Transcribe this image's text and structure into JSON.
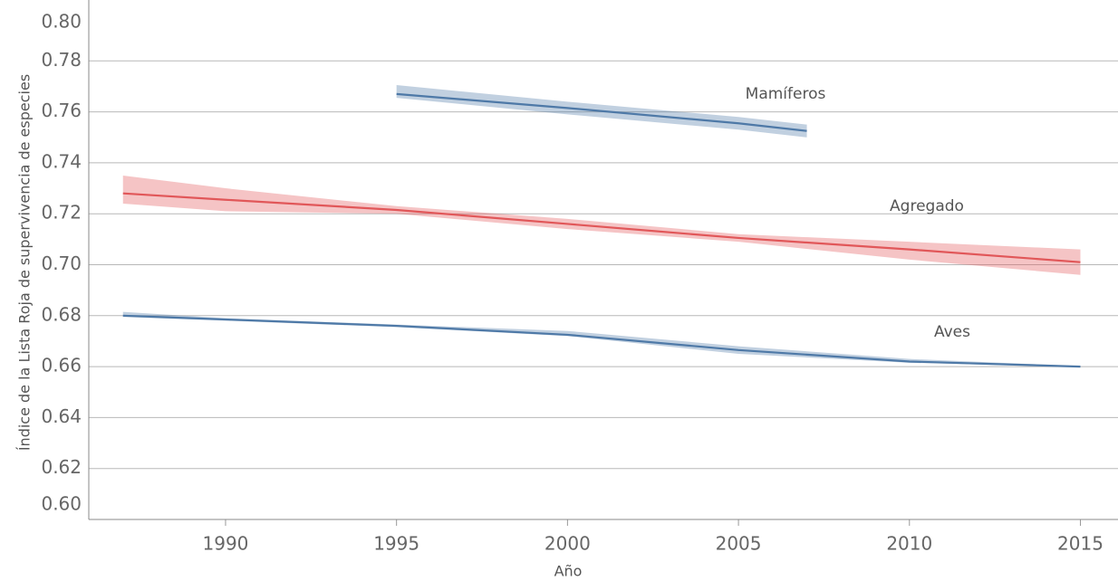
{
  "chart_data": {
    "type": "line",
    "x_label": "Año",
    "y_label": "Índice de la Lista Roja de supervivencia de especies",
    "xlim": [
      1986,
      2016.1
    ],
    "xticks": [
      1990,
      1995,
      2000,
      2005,
      2010,
      2015
    ],
    "ylim": [
      0.6,
      0.8
    ],
    "yticks": [
      {
        "value": 0.6,
        "label": "0.60"
      },
      {
        "value": 0.62,
        "label": "0.62"
      },
      {
        "value": 0.64,
        "label": "0.64"
      },
      {
        "value": 0.66,
        "label": "0.66"
      },
      {
        "value": 0.68,
        "label": "0.68"
      },
      {
        "value": 0.7,
        "label": "0.70"
      },
      {
        "value": 0.72,
        "label": "0.72"
      },
      {
        "value": 0.74,
        "label": "0.74"
      },
      {
        "value": 0.76,
        "label": "0.76"
      },
      {
        "value": 0.78,
        "label": "0.78"
      },
      {
        "value": 0.8,
        "label": "0.80"
      }
    ],
    "grid": true,
    "series": [
      {
        "name": "Mamíferos",
        "color": "#4e79a7",
        "x": [
          1995,
          2000,
          2005,
          2007
        ],
        "values": [
          0.767,
          0.7615,
          0.7555,
          0.7525
        ],
        "lower": [
          0.7655,
          0.759,
          0.753,
          0.75
        ],
        "upper": [
          0.7705,
          0.764,
          0.758,
          0.755
        ]
      },
      {
        "name": "Agregado",
        "color": "#e15759",
        "x": [
          1987,
          1990,
          1995,
          2000,
          2005,
          2010,
          2015
        ],
        "values": [
          0.728,
          0.7255,
          0.7215,
          0.716,
          0.7105,
          0.706,
          0.701
        ],
        "lower": [
          0.724,
          0.721,
          0.72,
          0.714,
          0.709,
          0.702,
          0.696
        ],
        "upper": [
          0.735,
          0.73,
          0.723,
          0.718,
          0.712,
          0.709,
          0.706
        ]
      },
      {
        "name": "Aves",
        "color": "#4e79a7",
        "x": [
          1987,
          1990,
          1995,
          2000,
          2005,
          2010,
          2015
        ],
        "values": [
          0.68,
          0.6785,
          0.676,
          0.6725,
          0.6665,
          0.662,
          0.66
        ],
        "lower": [
          0.6795,
          0.678,
          0.6755,
          0.672,
          0.665,
          0.6615,
          0.6598
        ],
        "upper": [
          0.6815,
          0.679,
          0.6765,
          0.674,
          0.668,
          0.663,
          0.6602
        ]
      }
    ]
  }
}
